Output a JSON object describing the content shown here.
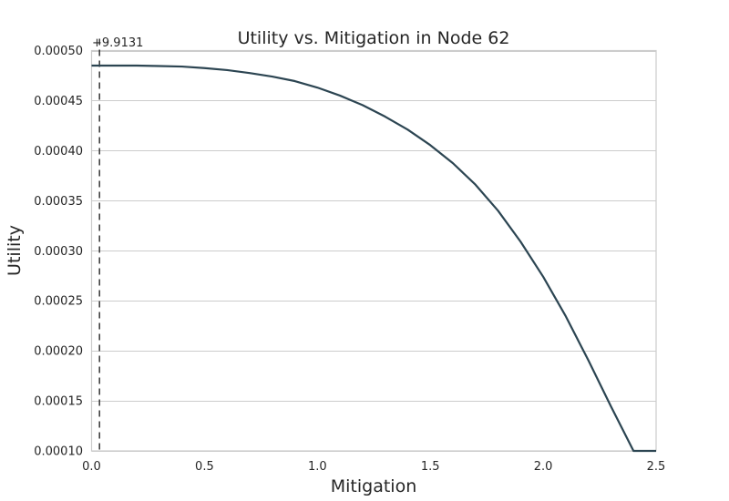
{
  "chart_data": {
    "type": "line",
    "title": "Utility vs. Mitigation in Node 62",
    "xlabel": "Mitigation",
    "ylabel": "Utility",
    "y_offset_label": "+9.9131",
    "xlim": [
      0.0,
      2.5
    ],
    "ylim": [
      0.0001,
      0.0005
    ],
    "x_ticks": [
      0.0,
      0.5,
      1.0,
      1.5,
      2.0,
      2.5
    ],
    "x_tick_labels": [
      "0.0",
      "0.5",
      "1.0",
      "1.5",
      "2.0",
      "2.5"
    ],
    "y_ticks": [
      0.0001,
      0.00015,
      0.0002,
      0.00025,
      0.0003,
      0.00035,
      0.0004,
      0.00045,
      0.0005
    ],
    "y_tick_labels": [
      "0.00010",
      "0.00015",
      "0.00020",
      "0.00025",
      "0.00030",
      "0.00035",
      "0.00040",
      "0.00045",
      "0.00050"
    ],
    "grid": "horizontal",
    "vertical_marker_x": 0.035,
    "series": [
      {
        "color": "#2c4552",
        "x": [
          0.0,
          0.1,
          0.2,
          0.3,
          0.4,
          0.5,
          0.6,
          0.7,
          0.8,
          0.9,
          1.0,
          1.1,
          1.2,
          1.3,
          1.4,
          1.5,
          1.6,
          1.7,
          1.8,
          1.9,
          2.0,
          2.1,
          2.2,
          2.3,
          2.4,
          2.5
        ],
        "y": [
          0.000485,
          0.000485,
          0.000485,
          0.0004845,
          0.000484,
          0.0004825,
          0.0004805,
          0.0004775,
          0.000474,
          0.0004695,
          0.000463,
          0.000455,
          0.0004455,
          0.000434,
          0.000421,
          0.0004055,
          0.0003875,
          0.000366,
          0.00034,
          0.000309,
          0.000274,
          0.0002345,
          0.0001905,
          0.0001445,
          0.0001,
          0.0001
        ]
      }
    ]
  }
}
